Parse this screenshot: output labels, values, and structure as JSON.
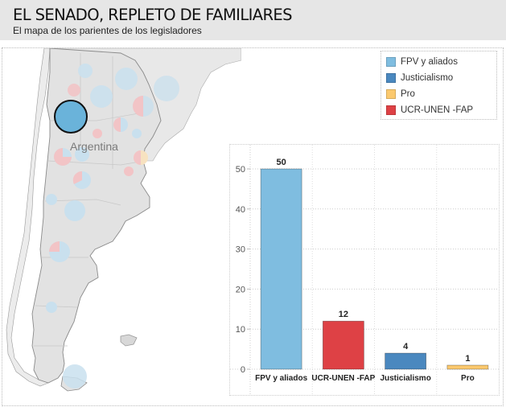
{
  "header": {
    "title": "EL SENADO, REPLETO DE FAMILIARES",
    "subtitle": "El mapa de los parientes de los legisladores"
  },
  "map": {
    "country_label": "Argentina",
    "colors": {
      "land": "#e4e4e4",
      "border": "#888888",
      "highlight_fill": "#6ab3da",
      "faded_blue": "#c9e0ee",
      "faded_red": "#f2c4c6",
      "faded_orange": "#f7e2c0"
    }
  },
  "legend": {
    "items": [
      {
        "label": "FPV y aliados",
        "color": "#7fbde0"
      },
      {
        "label": "Justicialismo",
        "color": "#4a88bf"
      },
      {
        "label": "Pro",
        "color": "#fbc96e"
      },
      {
        "label": "UCR-UNEN -FAP",
        "color": "#de4145"
      }
    ]
  },
  "chart_data": {
    "type": "bar",
    "title": "",
    "xlabel": "",
    "ylabel": "",
    "categories": [
      "FPV y aliados",
      "UCR-UNEN -FAP",
      "Justicialismo",
      "Pro"
    ],
    "values": [
      50,
      12,
      4,
      1
    ],
    "data_labels": [
      "50",
      "12",
      "4",
      "1"
    ],
    "colors": [
      "#7fbde0",
      "#de4145",
      "#4a88bf",
      "#fbc96e"
    ],
    "ylim": [
      0,
      54
    ],
    "yticks": [
      0,
      10,
      20,
      30,
      40,
      50
    ],
    "grid": true,
    "legend": "top-right"
  }
}
